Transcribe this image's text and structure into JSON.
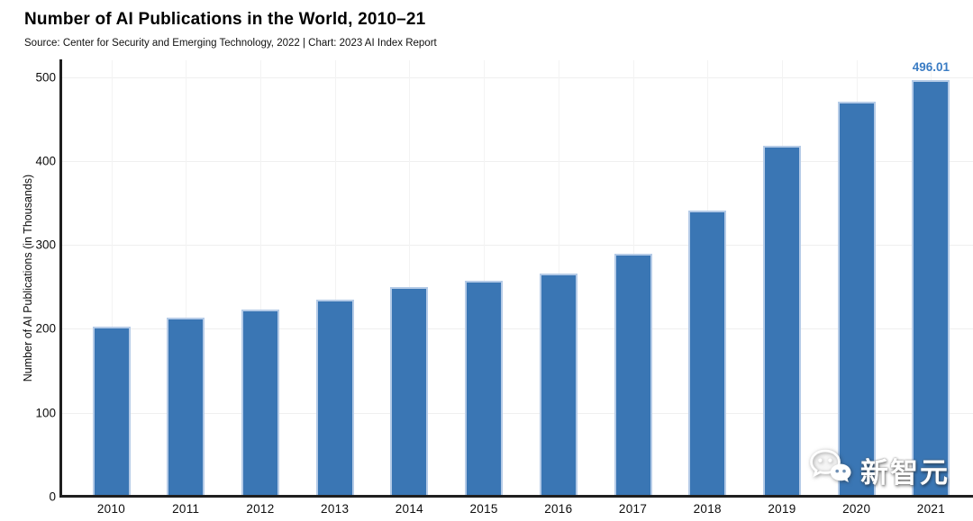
{
  "chart_data": {
    "type": "bar",
    "title": "Number of AI Publications in the World, 2010–21",
    "subtitle": "Source: Center for Security and Emerging Technology, 2022 | Chart: 2023 AI Index Report",
    "categories": [
      "2010",
      "2011",
      "2012",
      "2013",
      "2014",
      "2015",
      "2016",
      "2017",
      "2018",
      "2019",
      "2020",
      "2021"
    ],
    "values": [
      203,
      213,
      223,
      235,
      250,
      257,
      266,
      289,
      341,
      418,
      471,
      496.01
    ],
    "xlabel": "",
    "ylabel": "Number of AI Publications (in Thousands)",
    "ylim": [
      0,
      500
    ],
    "yticks": [
      0,
      100,
      200,
      300,
      400,
      500
    ],
    "grid": true,
    "legend": false,
    "data_labels": [
      {
        "category": "2021",
        "text": "496.01"
      }
    ],
    "colors": {
      "bar_fill": "#3a76b4",
      "bar_border": "#b5cbe7",
      "data_label": "#3a7cc4",
      "axis": "#1f1f1f",
      "gridline": "#efefef"
    }
  },
  "watermark": {
    "icon": "wechat-logo-icon",
    "text": "新智元"
  }
}
